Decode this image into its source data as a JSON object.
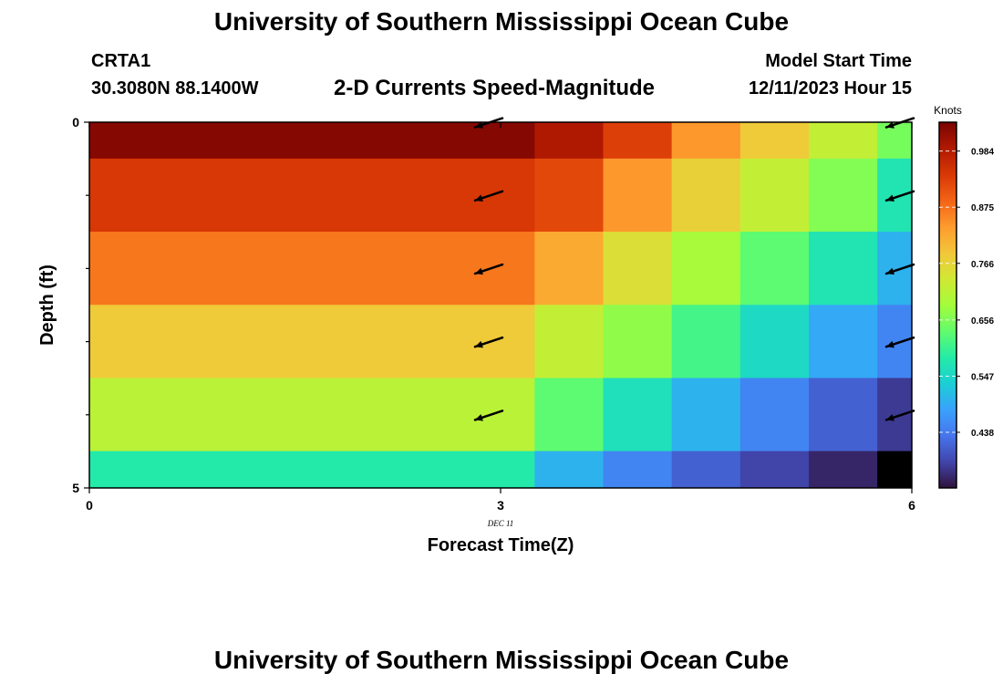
{
  "header": {
    "title": "University of Southern Mississippi Ocean Cube",
    "station": "CRTA1",
    "coordinates": "30.3080N  88.1400W",
    "subtitle": "2-D Currents Speed-Magnitude",
    "model_start_label": "Model Start Time",
    "model_start_value": "12/11/2023 Hour 15"
  },
  "footer": {
    "title": "University of Southern Mississippi Ocean Cube"
  },
  "chart_data": {
    "type": "heatmap",
    "title": "2-D Currents Speed-Magnitude",
    "xlabel": "Forecast Time(Z)",
    "ylabel": "Depth (ft)",
    "x_ticks": [
      "0",
      "3",
      "6"
    ],
    "x_sublabel": "DEC 11",
    "y_ticks": [
      "0",
      "5"
    ],
    "xlim": [
      0,
      6
    ],
    "ylim": [
      0,
      5
    ],
    "colorbar": {
      "label": "Knots",
      "ticks": [
        "0.984",
        "0.875",
        "0.766",
        "0.656",
        "0.547",
        "0.438"
      ],
      "tick_values": [
        0.984,
        0.875,
        0.766,
        0.656,
        0.547,
        0.438
      ],
      "range": [
        0.33,
        1.04
      ],
      "colors": [
        "#30123b",
        "#4145ab",
        "#4675ed",
        "#39a2fc",
        "#1bcfd4",
        "#24eca6",
        "#61fc6c",
        "#a4fc3b",
        "#d1e834",
        "#f3c63a",
        "#fe9b2d",
        "#f36315",
        "#d93806",
        "#b11901",
        "#7a0403"
      ]
    },
    "columns": [
      {
        "time_start": 0.0,
        "time_end": 3.25
      },
      {
        "time_start": 3.25,
        "time_end": 3.75
      },
      {
        "time_start": 3.75,
        "time_end": 4.25
      },
      {
        "time_start": 4.25,
        "time_end": 4.75
      },
      {
        "time_start": 4.75,
        "time_end": 5.25
      },
      {
        "time_start": 5.25,
        "time_end": 5.75
      },
      {
        "time_start": 5.75,
        "time_end": 6.0
      }
    ],
    "rows": [
      {
        "depth_start": 0.0,
        "depth_end": 0.5,
        "speeds": [
          1.03,
          0.99,
          0.93,
          0.84,
          0.78,
          0.72,
          0.65
        ]
      },
      {
        "depth_start": 0.5,
        "depth_end": 1.5,
        "speeds": [
          0.94,
          0.92,
          0.84,
          0.77,
          0.72,
          0.66,
          0.57
        ]
      },
      {
        "depth_start": 1.5,
        "depth_end": 2.5,
        "speeds": [
          0.87,
          0.82,
          0.75,
          0.69,
          0.63,
          0.57,
          0.5
        ]
      },
      {
        "depth_start": 2.5,
        "depth_end": 3.5,
        "speeds": [
          0.78,
          0.72,
          0.67,
          0.61,
          0.55,
          0.49,
          0.45
        ]
      },
      {
        "depth_start": 3.5,
        "depth_end": 4.5,
        "speeds": [
          0.71,
          0.63,
          0.56,
          0.5,
          0.45,
          0.41,
          0.37
        ]
      },
      {
        "depth_start": 4.5,
        "depth_end": 5.0,
        "speeds": [
          0.58,
          0.5,
          0.45,
          0.41,
          0.38,
          0.35,
          0.3
        ]
      }
    ],
    "vectors": [
      {
        "time": 3,
        "depth": 0
      },
      {
        "time": 3,
        "depth": 1
      },
      {
        "time": 3,
        "depth": 2
      },
      {
        "time": 3,
        "depth": 3
      },
      {
        "time": 3,
        "depth": 4
      },
      {
        "time": 6,
        "depth": 0
      },
      {
        "time": 6,
        "depth": 1
      },
      {
        "time": 6,
        "depth": 2
      },
      {
        "time": 6,
        "depth": 3
      },
      {
        "time": 6,
        "depth": 4
      }
    ],
    "vector_direction": "toward WSW"
  }
}
